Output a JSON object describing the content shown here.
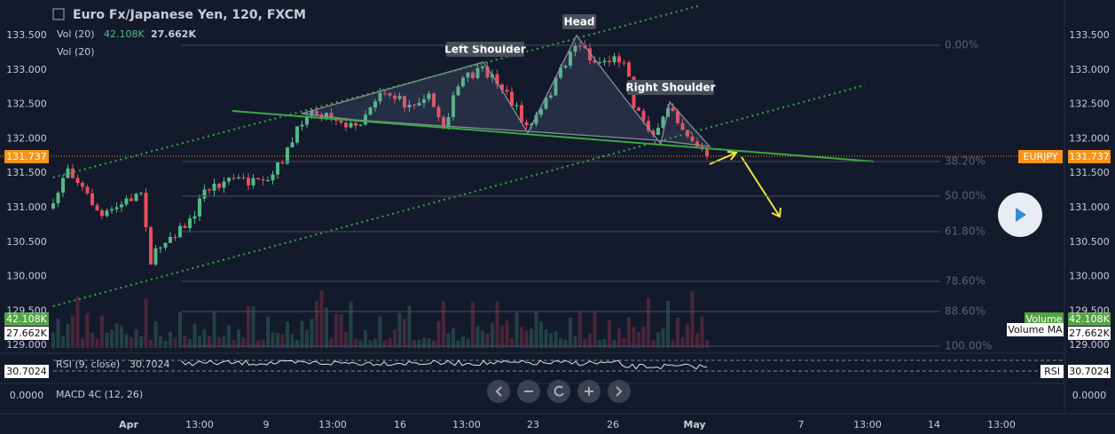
{
  "header": {
    "symbol": "Euro Fx/Japanese Yen, 120, FXCM",
    "volume_label": "Vol (20)",
    "volume_value": "42.108K",
    "volume_ma_value": "27.662K",
    "volume_ma_label": "Vol (20)"
  },
  "price_axis": [
    "133.500",
    "133.000",
    "132.500",
    "132.000",
    "131.500",
    "131.000",
    "130.500",
    "130.000",
    "129.500",
    "129.000"
  ],
  "fib_levels": [
    "0.00%",
    "38.20%",
    "50.00%",
    "61.80%",
    "78.60%",
    "88.60%",
    "100.00%"
  ],
  "annotations": {
    "left_shoulder": "Left Shoulder",
    "head": "Head",
    "right_shoulder": "Right Shoulder"
  },
  "badges": {
    "last_price": "131.737",
    "symbol": "EURJPY",
    "volume_label": "Volume",
    "volume_value": "42.108K",
    "volume_ma_value": "27.662K",
    "volume_ma_label": "Volume MA"
  },
  "rsi": {
    "label": "RSI (9, close)",
    "value": "30.7024",
    "badge": "RSI"
  },
  "macd": {
    "label": "MACD 4C (12, 26)",
    "value": "0.0000"
  },
  "time_axis": [
    "Apr",
    "13:00",
    "9",
    "13:00",
    "16",
    "13:00",
    "23",
    "26",
    "May",
    "7",
    "13:00",
    "14",
    "13:00"
  ]
}
